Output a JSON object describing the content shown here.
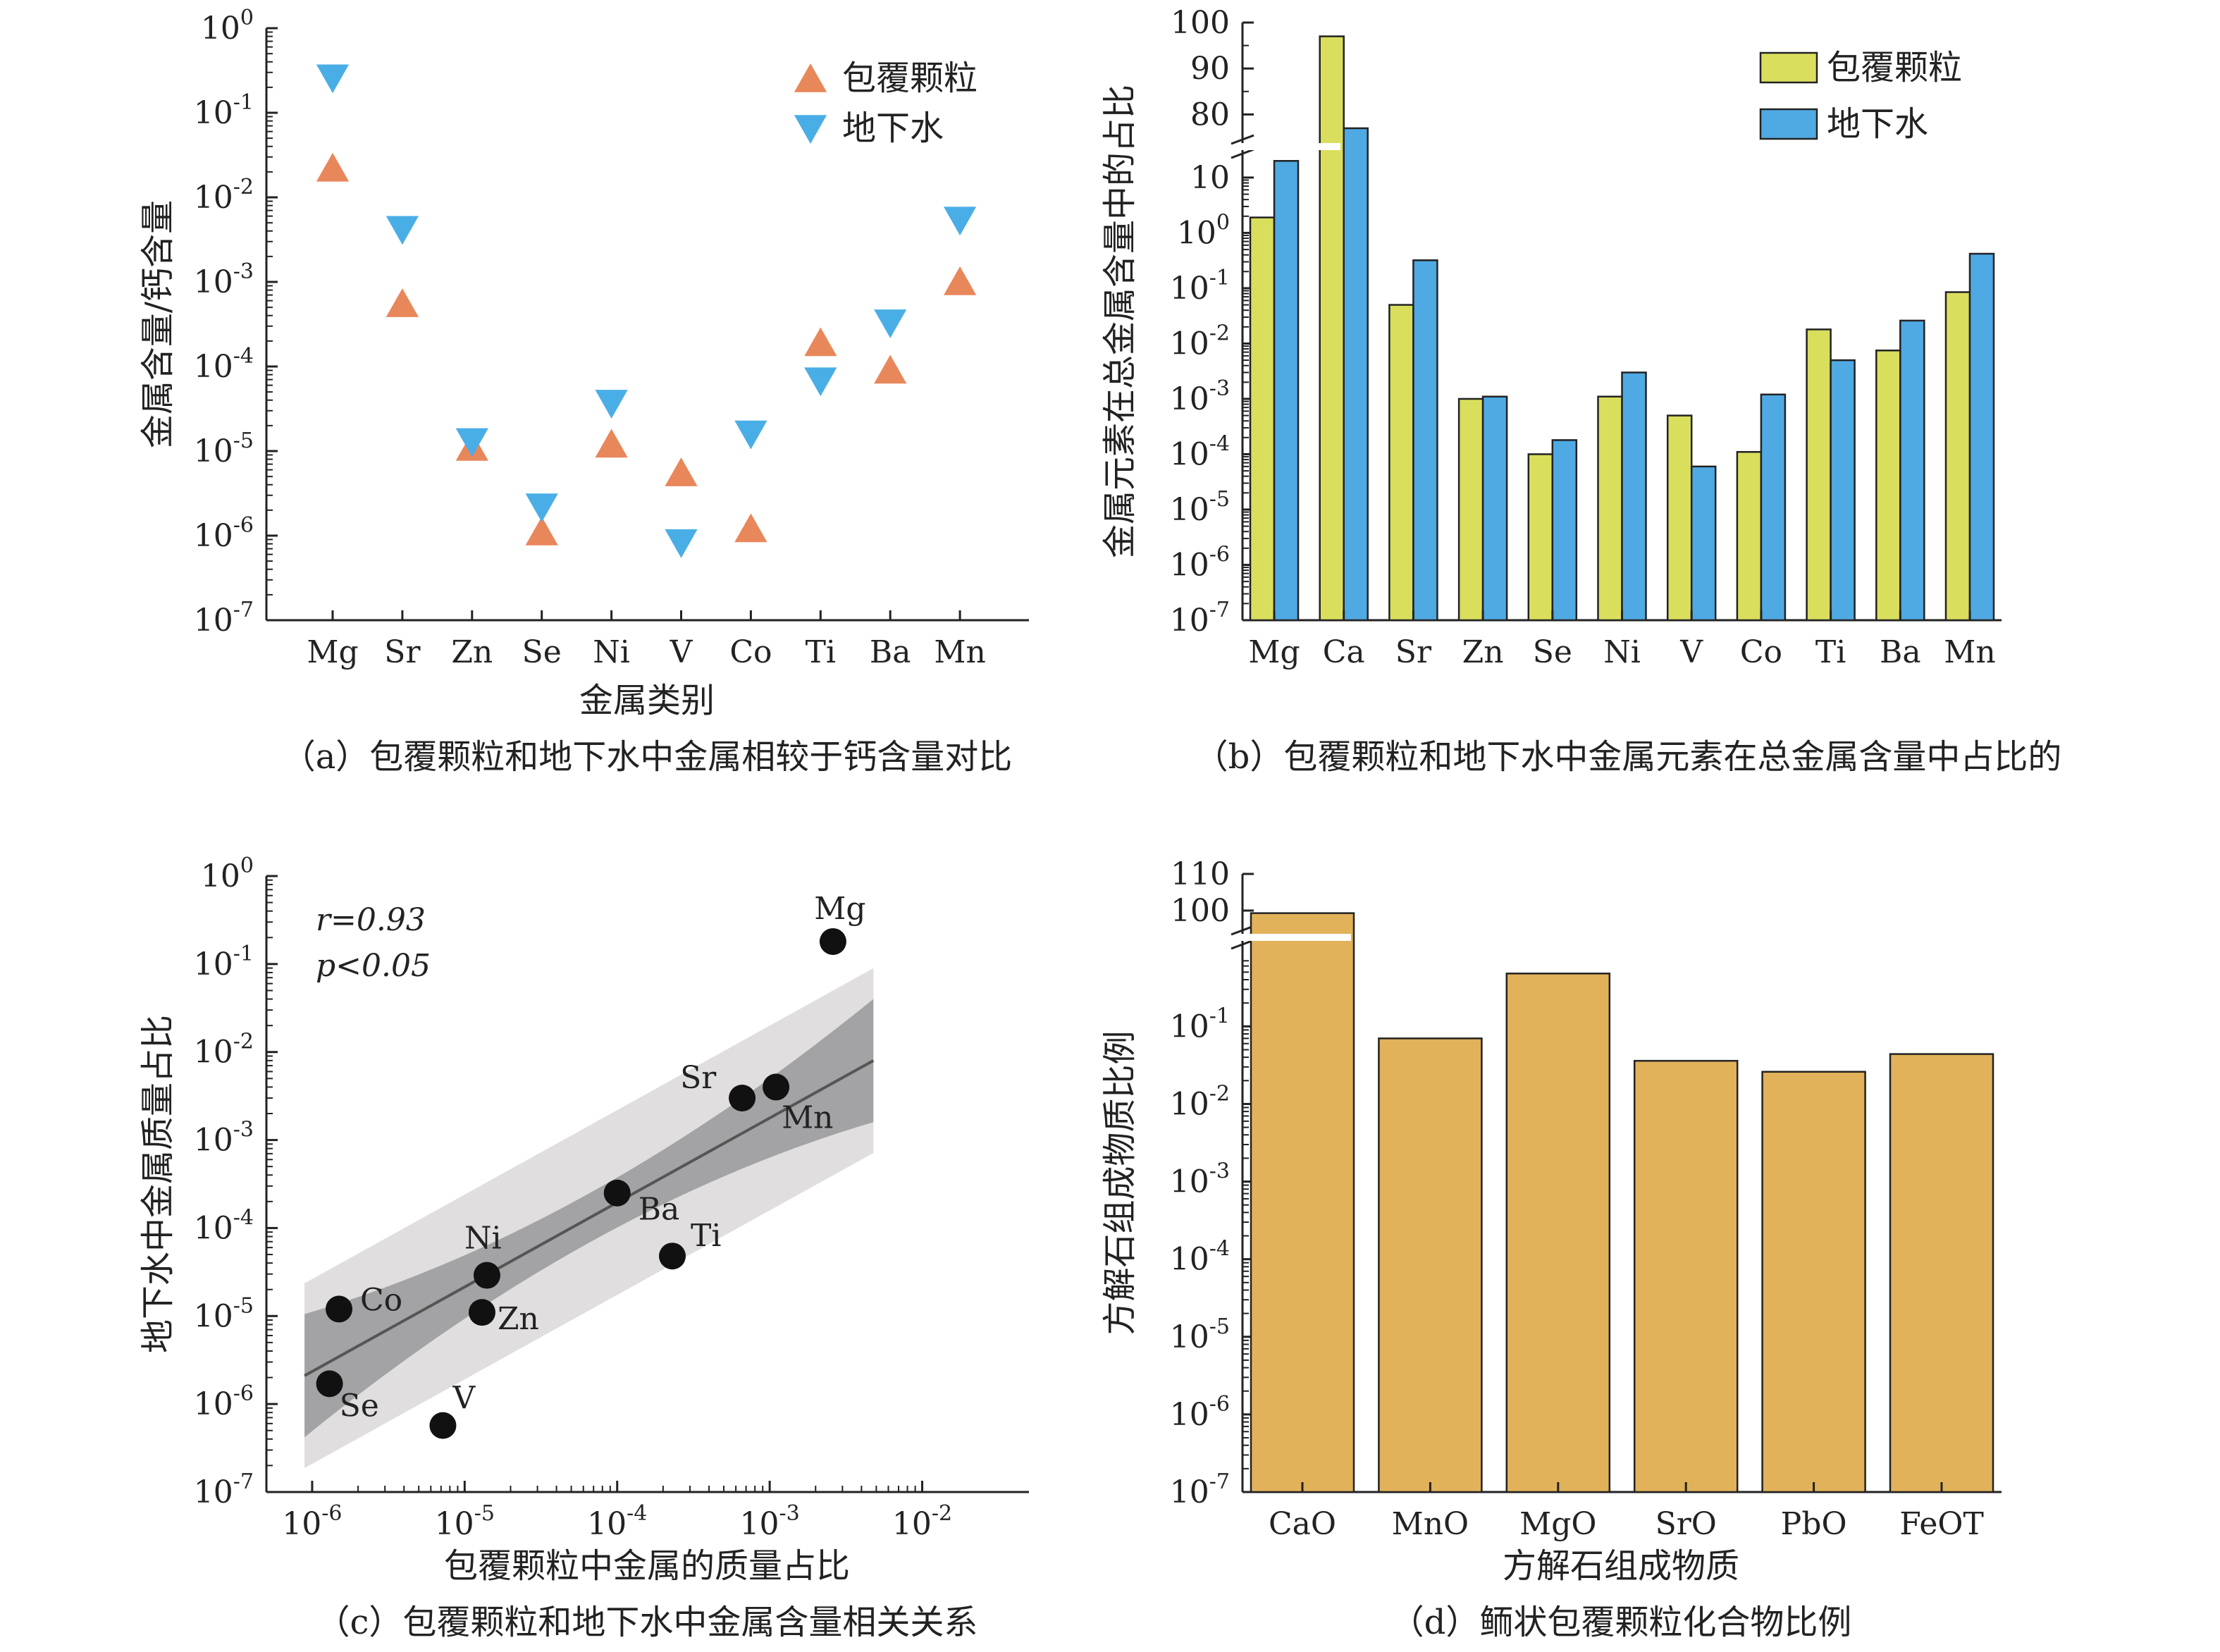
{
  "colors": {
    "particle_marker": "#E8875A",
    "groundwater_marker": "#4AAEE6",
    "particle_bar": "#D9DF5D",
    "groundwater_bar": "#4FA9E3",
    "compound_bar": "#E1B25A",
    "ci_outer": "#E0DEDE",
    "ci_inner": "#A3A2A5",
    "fit_line": "#555555",
    "point": "#111111"
  },
  "chart_data": [
    {
      "id": "a",
      "type": "scatter",
      "caption": "（a）包覆颗粒和地下水中金属相较于钙含量对比",
      "xlabel": "金属类别",
      "ylabel": "金属含量/钙含量",
      "yscale": "log",
      "ylim_exp": [
        -7,
        0
      ],
      "categories": [
        "Mg",
        "Sr",
        "Zn",
        "Se",
        "Ni",
        "V",
        "Co",
        "Ti",
        "Ba",
        "Mn"
      ],
      "legend_position": "top-right",
      "series": [
        {
          "name": "包覆颗粒",
          "marker": "triangle-up",
          "values": [
            0.022,
            0.00055,
            1.1e-05,
            1.1e-06,
            1.2e-05,
            5.5e-06,
            1.2e-06,
            0.00019,
            9e-05,
            0.001
          ]
        },
        {
          "name": "地下水",
          "marker": "triangle-down",
          "values": [
            0.26,
            0.0042,
            1.3e-05,
            2.2e-06,
            3.7e-05,
            8.3e-07,
            1.6e-05,
            6.8e-05,
            0.00033,
            0.0054
          ]
        }
      ]
    },
    {
      "id": "b",
      "type": "bar",
      "caption": "（b）包覆颗粒和地下水中金属元素在总金属含量中占比的",
      "xlabel": "",
      "ylabel": "金属元素在总金属含量中的占比",
      "yscale": "broken-log",
      "lower_ylim_exp": [
        -7,
        1
      ],
      "upper_range": [
        75,
        100
      ],
      "upper_ticks": [
        80,
        90,
        100
      ],
      "categories": [
        "Mg",
        "Ca",
        "Sr",
        "Zn",
        "Se",
        "Ni",
        "V",
        "Co",
        "Ti",
        "Ba",
        "Mn"
      ],
      "legend_position": "top-right",
      "series": [
        {
          "name": "包覆颗粒",
          "values": [
            1.9,
            97,
            0.05,
            0.001,
            0.0001,
            0.0011,
            0.0005,
            0.00011,
            0.018,
            0.0075,
            0.085
          ]
        },
        {
          "name": "地下水",
          "values": [
            20,
            77,
            0.32,
            0.0011,
            0.00018,
            0.003,
            6e-05,
            0.0012,
            0.005,
            0.026,
            0.42
          ]
        }
      ]
    },
    {
      "id": "c",
      "type": "scatter",
      "caption": "（c）包覆颗粒和地下水中金属含量相关关系",
      "xlabel": "包覆颗粒中金属的质量占比",
      "ylabel": "地下水中金属质量占比",
      "xscale": "log",
      "yscale": "log",
      "xlim_exp": [
        -6.3,
        -1.3
      ],
      "ylim_exp": [
        -7,
        0
      ],
      "x_tick_exps": [
        -6,
        -5,
        -4,
        -3,
        -2
      ],
      "stats": {
        "r": "r=0.93",
        "p": "p<0.05"
      },
      "fit": {
        "slope": 0.96,
        "intercept": 0.13
      },
      "points": [
        {
          "label": "Mg",
          "x": 0.0026,
          "y": 0.18
        },
        {
          "label": "Sr",
          "x": 0.00066,
          "y": 0.003
        },
        {
          "label": "Mn",
          "x": 0.0011,
          "y": 0.004
        },
        {
          "label": "Ba",
          "x": 0.0001,
          "y": 0.00025
        },
        {
          "label": "Ti",
          "x": 0.00023,
          "y": 4.8e-05
        },
        {
          "label": "Ni",
          "x": 1.4e-05,
          "y": 2.9e-05
        },
        {
          "label": "Zn",
          "x": 1.3e-05,
          "y": 1.1e-05
        },
        {
          "label": "Co",
          "x": 1.5e-06,
          "y": 1.2e-05
        },
        {
          "label": "Se",
          "x": 1.3e-06,
          "y": 1.7e-06
        },
        {
          "label": "V",
          "x": 7.2e-06,
          "y": 5.7e-07
        }
      ]
    },
    {
      "id": "d",
      "type": "bar",
      "caption": "（d）鲕状包覆颗粒化合物比例",
      "xlabel": "方解石组成物质",
      "ylabel": "方解石组成物质比例",
      "yscale": "broken-log",
      "lower_ylim_exp": [
        -7,
        0
      ],
      "upper_range": [
        95,
        110
      ],
      "upper_ticks": [
        100,
        110
      ],
      "categories": [
        "CaO",
        "MnO",
        "MgO",
        "SrO",
        "PbO",
        "FeOT"
      ],
      "series": [
        {
          "values": [
            99.3,
            0.07,
            0.48,
            0.036,
            0.026,
            0.044
          ]
        }
      ]
    }
  ]
}
